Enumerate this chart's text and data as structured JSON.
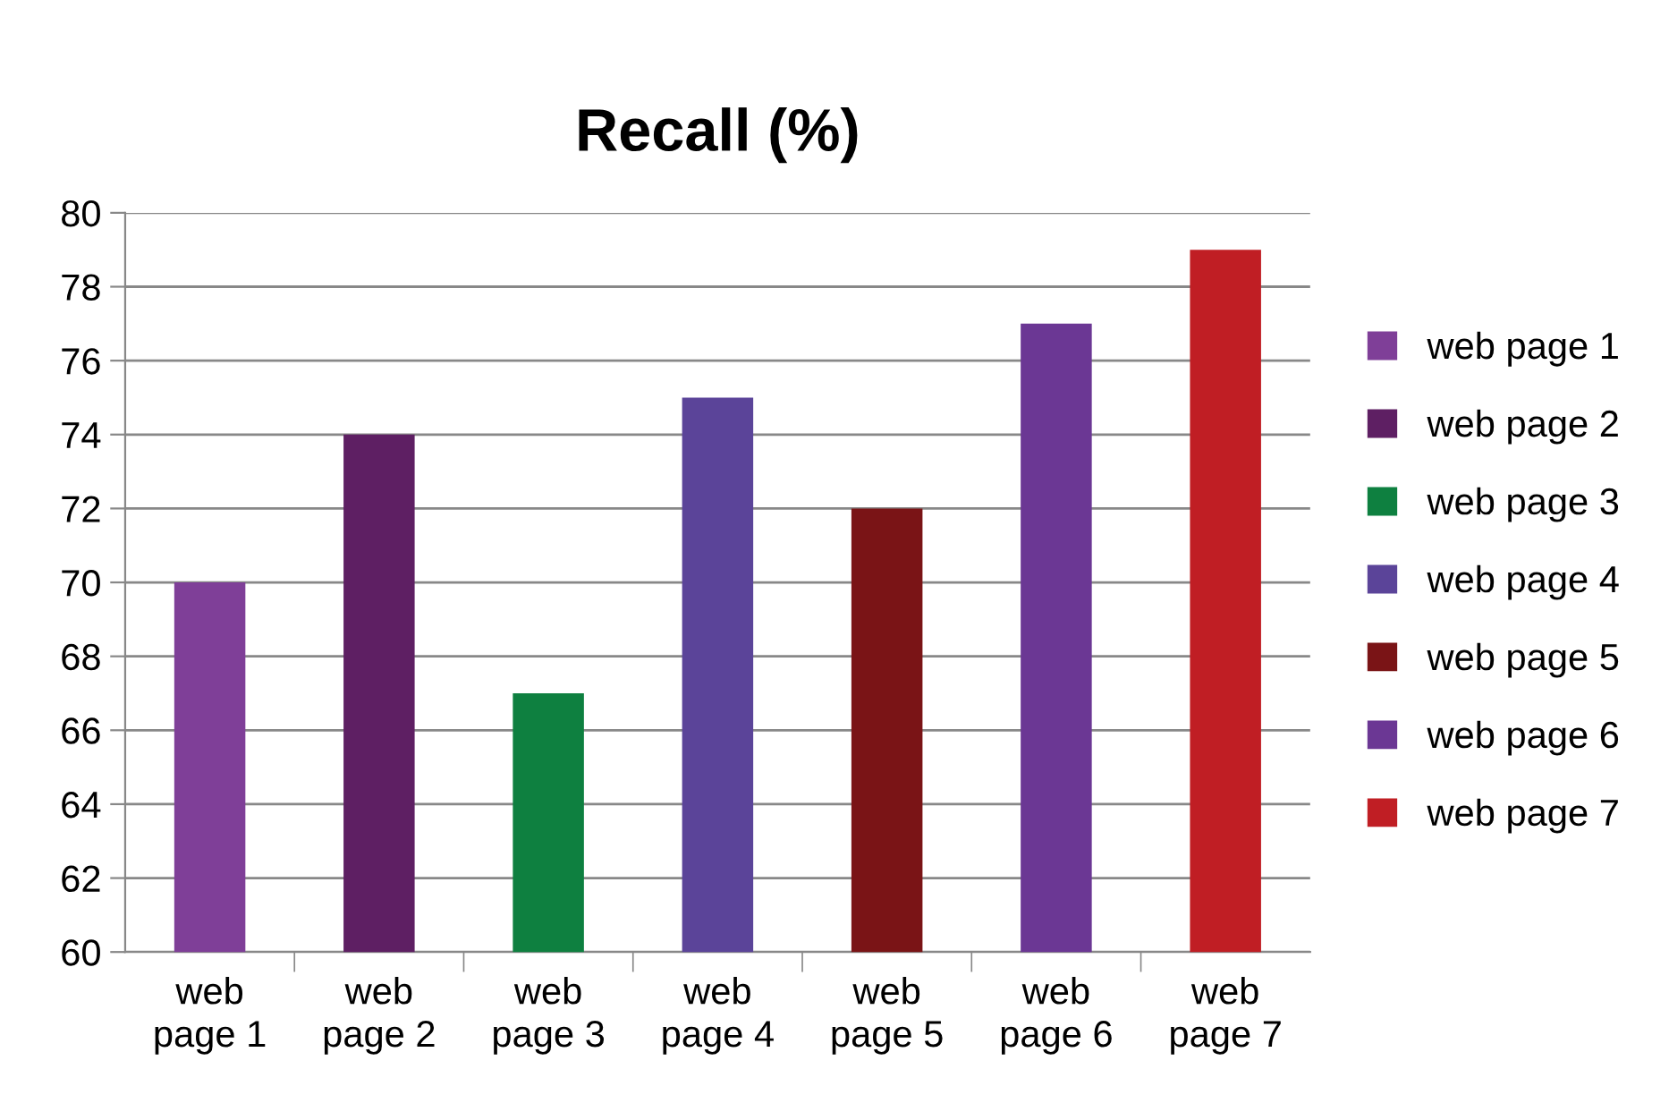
{
  "chart_data": {
    "type": "bar",
    "title": "Recall (%)",
    "categories": [
      "web page 1",
      "web page 2",
      "web page 3",
      "web page 4",
      "web page 5",
      "web page 6",
      "web page 7"
    ],
    "series": [
      {
        "name": "web page 1",
        "color": "#7f3f98",
        "values": [
          70,
          null,
          null,
          null,
          null,
          null,
          null
        ]
      },
      {
        "name": "web page 2",
        "color": "#5e1f63",
        "values": [
          null,
          74,
          null,
          null,
          null,
          null,
          null
        ]
      },
      {
        "name": "web page 3",
        "color": "#0e8040",
        "values": [
          null,
          null,
          67,
          null,
          null,
          null,
          null
        ]
      },
      {
        "name": "web page 4",
        "color": "#5b4499",
        "values": [
          null,
          null,
          null,
          75,
          null,
          null,
          null
        ]
      },
      {
        "name": "web page 5",
        "color": "#7a1416",
        "values": [
          null,
          null,
          null,
          null,
          72,
          null,
          null
        ]
      },
      {
        "name": "web page 6",
        "color": "#6b3794",
        "values": [
          null,
          null,
          null,
          null,
          null,
          77,
          null
        ]
      },
      {
        "name": "web page 7",
        "color": "#c01e24",
        "values": [
          null,
          null,
          null,
          null,
          null,
          null,
          79
        ]
      }
    ],
    "ylim": [
      60,
      80
    ],
    "yticks": [
      60,
      62,
      64,
      66,
      68,
      70,
      72,
      74,
      76,
      78,
      80
    ],
    "grid": "y",
    "legend": "right"
  }
}
